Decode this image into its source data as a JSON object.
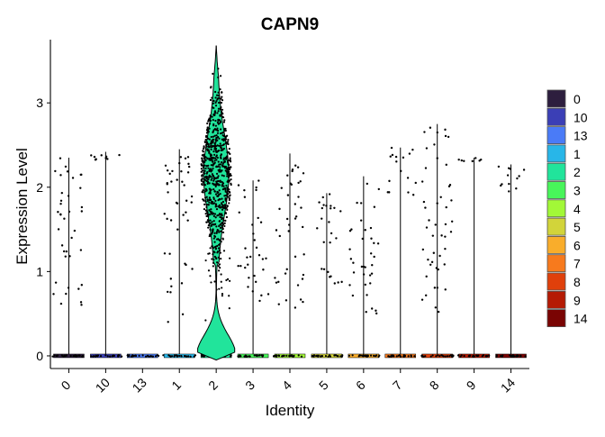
{
  "chart_data": {
    "type": "violin",
    "title": "CAPN9",
    "xlabel": "Identity",
    "ylabel": "Expression Level",
    "ylim": [
      -0.15,
      3.75
    ],
    "yticks": [
      0,
      1,
      2,
      3
    ],
    "categories": [
      "0",
      "10",
      "13",
      "1",
      "2",
      "3",
      "4",
      "5",
      "6",
      "7",
      "8",
      "9",
      "14"
    ],
    "colors": [
      "#2d1e3e",
      "#3b3fb6",
      "#4a7bf7",
      "#28b6e8",
      "#21e49b",
      "#48f55a",
      "#a2f837",
      "#d2d43a",
      "#f9ad2b",
      "#f77a1d",
      "#e0400b",
      "#b51a04",
      "#7a0403"
    ],
    "groups": [
      {
        "label": "0",
        "max_expression": 2.35,
        "nonzero_range": [
          0.6,
          2.35
        ]
      },
      {
        "label": "10",
        "max_expression": 2.42,
        "nonzero_range": [
          2.25,
          2.42
        ]
      },
      {
        "label": "13",
        "max_expression": 0.0,
        "nonzero_range": []
      },
      {
        "label": "1",
        "max_expression": 2.45,
        "nonzero_range": [
          0.4,
          2.45
        ]
      },
      {
        "label": "2",
        "max_expression": 3.68,
        "nonzero_range": [
          0.4,
          3.68
        ]
      },
      {
        "label": "3",
        "max_expression": 2.08,
        "nonzero_range": [
          0.65,
          2.08
        ]
      },
      {
        "label": "4",
        "max_expression": 2.4,
        "nonzero_range": [
          0.55,
          2.4
        ]
      },
      {
        "label": "5",
        "max_expression": 1.93,
        "nonzero_range": [
          0.85,
          1.93
        ]
      },
      {
        "label": "6",
        "max_expression": 2.13,
        "nonzero_range": [
          0.45,
          2.13
        ]
      },
      {
        "label": "7",
        "max_expression": 2.47,
        "nonzero_range": [
          1.9,
          2.47
        ]
      },
      {
        "label": "8",
        "max_expression": 2.75,
        "nonzero_range": [
          0.5,
          2.75
        ]
      },
      {
        "label": "9",
        "max_expression": 2.35,
        "nonzero_range": [
          2.3,
          2.35
        ]
      },
      {
        "label": "14",
        "max_expression": 2.27,
        "nonzero_range": [
          1.95,
          2.27
        ]
      }
    ],
    "legend": {
      "placement": "right",
      "entries": [
        "0",
        "10",
        "13",
        "1",
        "2",
        "3",
        "4",
        "5",
        "6",
        "7",
        "8",
        "9",
        "14"
      ]
    }
  }
}
